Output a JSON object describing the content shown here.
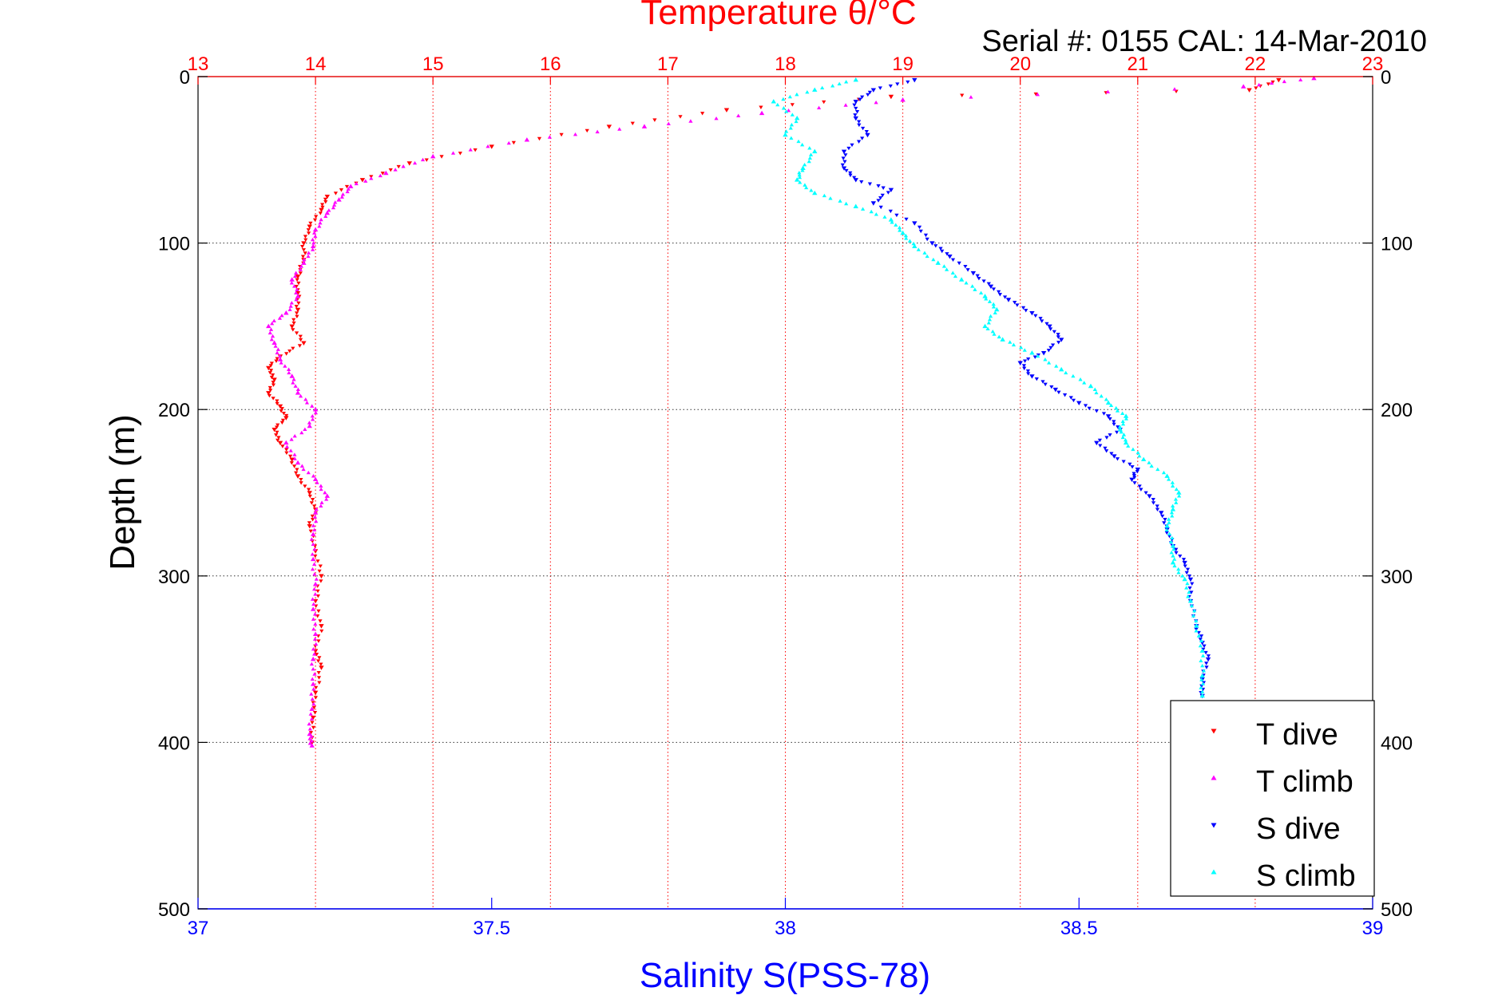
{
  "chart_data": {
    "type": "scatter",
    "title": "Temperature θ/°C",
    "subtitle": "Serial #: 0155  CAL: 14-Mar-2010",
    "xlabel": "Salinity S(PSS-78)",
    "ylabel": "Depth (m)",
    "top_axis": {
      "label": "Temperature θ/°C",
      "range": [
        13,
        23
      ],
      "ticks": [
        "13",
        "14",
        "15",
        "16",
        "17",
        "18",
        "19",
        "20",
        "21",
        "22",
        "23"
      ],
      "color": "#ff0000"
    },
    "bottom_axis": {
      "label": "Salinity S(PSS-78)",
      "range": [
        37,
        39
      ],
      "ticks": [
        "37",
        "37.5",
        "38",
        "38.5",
        "39"
      ],
      "color": "#0000ff"
    },
    "y_axis": {
      "range": [
        0,
        500
      ],
      "reversed": true,
      "ticks": [
        "0",
        "100",
        "200",
        "300",
        "400",
        "500"
      ]
    },
    "grid": true,
    "legend": {
      "placement": "bottom-right",
      "entries": [
        "T dive",
        "T climb",
        "S dive",
        "S climb"
      ]
    },
    "series": [
      {
        "name": "T dive",
        "axis": "temperature",
        "color": "#ff0000",
        "marker": "triangle-down",
        "points": [
          [
            22.2,
            2
          ],
          [
            21.95,
            8
          ],
          [
            18.9,
            12
          ],
          [
            17.5,
            20
          ],
          [
            16.5,
            30
          ],
          [
            15.5,
            42
          ],
          [
            14.8,
            52
          ],
          [
            14.4,
            62
          ],
          [
            14.1,
            72
          ],
          [
            14.05,
            80
          ],
          [
            13.95,
            90
          ],
          [
            13.9,
            100
          ],
          [
            13.9,
            110
          ],
          [
            13.85,
            120
          ],
          [
            13.85,
            130
          ],
          [
            13.85,
            140
          ],
          [
            13.8,
            150
          ],
          [
            13.9,
            160
          ],
          [
            13.7,
            168
          ],
          [
            13.6,
            175
          ],
          [
            13.65,
            182
          ],
          [
            13.6,
            190
          ],
          [
            13.7,
            198
          ],
          [
            13.75,
            205
          ],
          [
            13.65,
            212
          ],
          [
            13.7,
            220
          ],
          [
            13.8,
            230
          ],
          [
            13.85,
            240
          ],
          [
            13.95,
            250
          ],
          [
            14.0,
            260
          ],
          [
            13.95,
            270
          ],
          [
            14.0,
            285
          ],
          [
            14.05,
            300
          ],
          [
            14.0,
            315
          ],
          [
            14.05,
            330
          ],
          [
            14.0,
            345
          ],
          [
            14.05,
            355
          ],
          [
            14.0,
            370
          ],
          [
            13.98,
            385
          ],
          [
            13.97,
            400
          ]
        ]
      },
      {
        "name": "T climb",
        "axis": "temperature",
        "color": "#ff00ff",
        "marker": "triangle-up",
        "points": [
          [
            22.5,
            1
          ],
          [
            21.9,
            6
          ],
          [
            19.0,
            14
          ],
          [
            17.8,
            22
          ],
          [
            16.8,
            30
          ],
          [
            15.8,
            38
          ],
          [
            15.0,
            48
          ],
          [
            14.6,
            58
          ],
          [
            14.3,
            66
          ],
          [
            14.2,
            74
          ],
          [
            14.1,
            82
          ],
          [
            14.0,
            92
          ],
          [
            13.98,
            102
          ],
          [
            13.9,
            112
          ],
          [
            13.8,
            122
          ],
          [
            13.85,
            132
          ],
          [
            13.75,
            142
          ],
          [
            13.6,
            150
          ],
          [
            13.65,
            160
          ],
          [
            13.7,
            170
          ],
          [
            13.8,
            180
          ],
          [
            13.85,
            190
          ],
          [
            14.0,
            200
          ],
          [
            13.95,
            210
          ],
          [
            13.75,
            220
          ],
          [
            13.85,
            232
          ],
          [
            14.0,
            242
          ],
          [
            14.1,
            252
          ],
          [
            14.0,
            262
          ],
          [
            13.98,
            275
          ],
          [
            13.98,
            290
          ],
          [
            14.0,
            305
          ],
          [
            13.98,
            320
          ],
          [
            14.0,
            335
          ],
          [
            13.98,
            350
          ],
          [
            13.98,
            365
          ],
          [
            13.97,
            380
          ],
          [
            13.95,
            395
          ],
          [
            13.97,
            402
          ]
        ]
      },
      {
        "name": "S dive",
        "axis": "salinity",
        "color": "#0000ff",
        "marker": "triangle-down",
        "points": [
          [
            38.22,
            2
          ],
          [
            38.15,
            8
          ],
          [
            38.12,
            15
          ],
          [
            38.12,
            25
          ],
          [
            38.14,
            35
          ],
          [
            38.1,
            45
          ],
          [
            38.1,
            55
          ],
          [
            38.12,
            62
          ],
          [
            38.18,
            68
          ],
          [
            38.15,
            76
          ],
          [
            38.22,
            88
          ],
          [
            38.25,
            100
          ],
          [
            38.28,
            108
          ],
          [
            38.32,
            118
          ],
          [
            38.35,
            126
          ],
          [
            38.38,
            134
          ],
          [
            38.42,
            142
          ],
          [
            38.45,
            150
          ],
          [
            38.47,
            158
          ],
          [
            38.44,
            166
          ],
          [
            38.4,
            172
          ],
          [
            38.42,
            180
          ],
          [
            38.46,
            188
          ],
          [
            38.5,
            196
          ],
          [
            38.55,
            204
          ],
          [
            38.57,
            212
          ],
          [
            38.53,
            220
          ],
          [
            38.56,
            228
          ],
          [
            38.6,
            236
          ],
          [
            38.59,
            242
          ],
          [
            38.62,
            252
          ],
          [
            38.64,
            262
          ],
          [
            38.65,
            272
          ],
          [
            38.66,
            282
          ],
          [
            38.68,
            292
          ],
          [
            38.69,
            302
          ],
          [
            38.69,
            315
          ],
          [
            38.7,
            330
          ],
          [
            38.71,
            340
          ],
          [
            38.72,
            350
          ],
          [
            38.71,
            362
          ],
          [
            38.71,
            372
          ]
        ]
      },
      {
        "name": "S climb",
        "axis": "salinity",
        "color": "#00ffff",
        "marker": "triangle-up",
        "points": [
          [
            38.12,
            2
          ],
          [
            38.05,
            8
          ],
          [
            37.98,
            15
          ],
          [
            38.02,
            25
          ],
          [
            38.0,
            35
          ],
          [
            38.05,
            45
          ],
          [
            38.03,
            55
          ],
          [
            38.02,
            62
          ],
          [
            38.05,
            70
          ],
          [
            38.12,
            78
          ],
          [
            38.18,
            86
          ],
          [
            38.2,
            94
          ],
          [
            38.22,
            102
          ],
          [
            38.26,
            112
          ],
          [
            38.3,
            122
          ],
          [
            38.34,
            132
          ],
          [
            38.36,
            140
          ],
          [
            38.34,
            150
          ],
          [
            38.37,
            158
          ],
          [
            38.42,
            166
          ],
          [
            38.47,
            176
          ],
          [
            38.52,
            186
          ],
          [
            38.55,
            196
          ],
          [
            38.58,
            204
          ],
          [
            38.57,
            212
          ],
          [
            38.58,
            220
          ],
          [
            38.61,
            230
          ],
          [
            38.65,
            240
          ],
          [
            38.67,
            250
          ],
          [
            38.66,
            260
          ],
          [
            38.65,
            270
          ],
          [
            38.66,
            282
          ],
          [
            38.66,
            292
          ],
          [
            38.68,
            302
          ],
          [
            38.69,
            315
          ],
          [
            38.7,
            330
          ],
          [
            38.71,
            345
          ],
          [
            38.71,
            360
          ],
          [
            38.71,
            372
          ]
        ]
      }
    ]
  }
}
